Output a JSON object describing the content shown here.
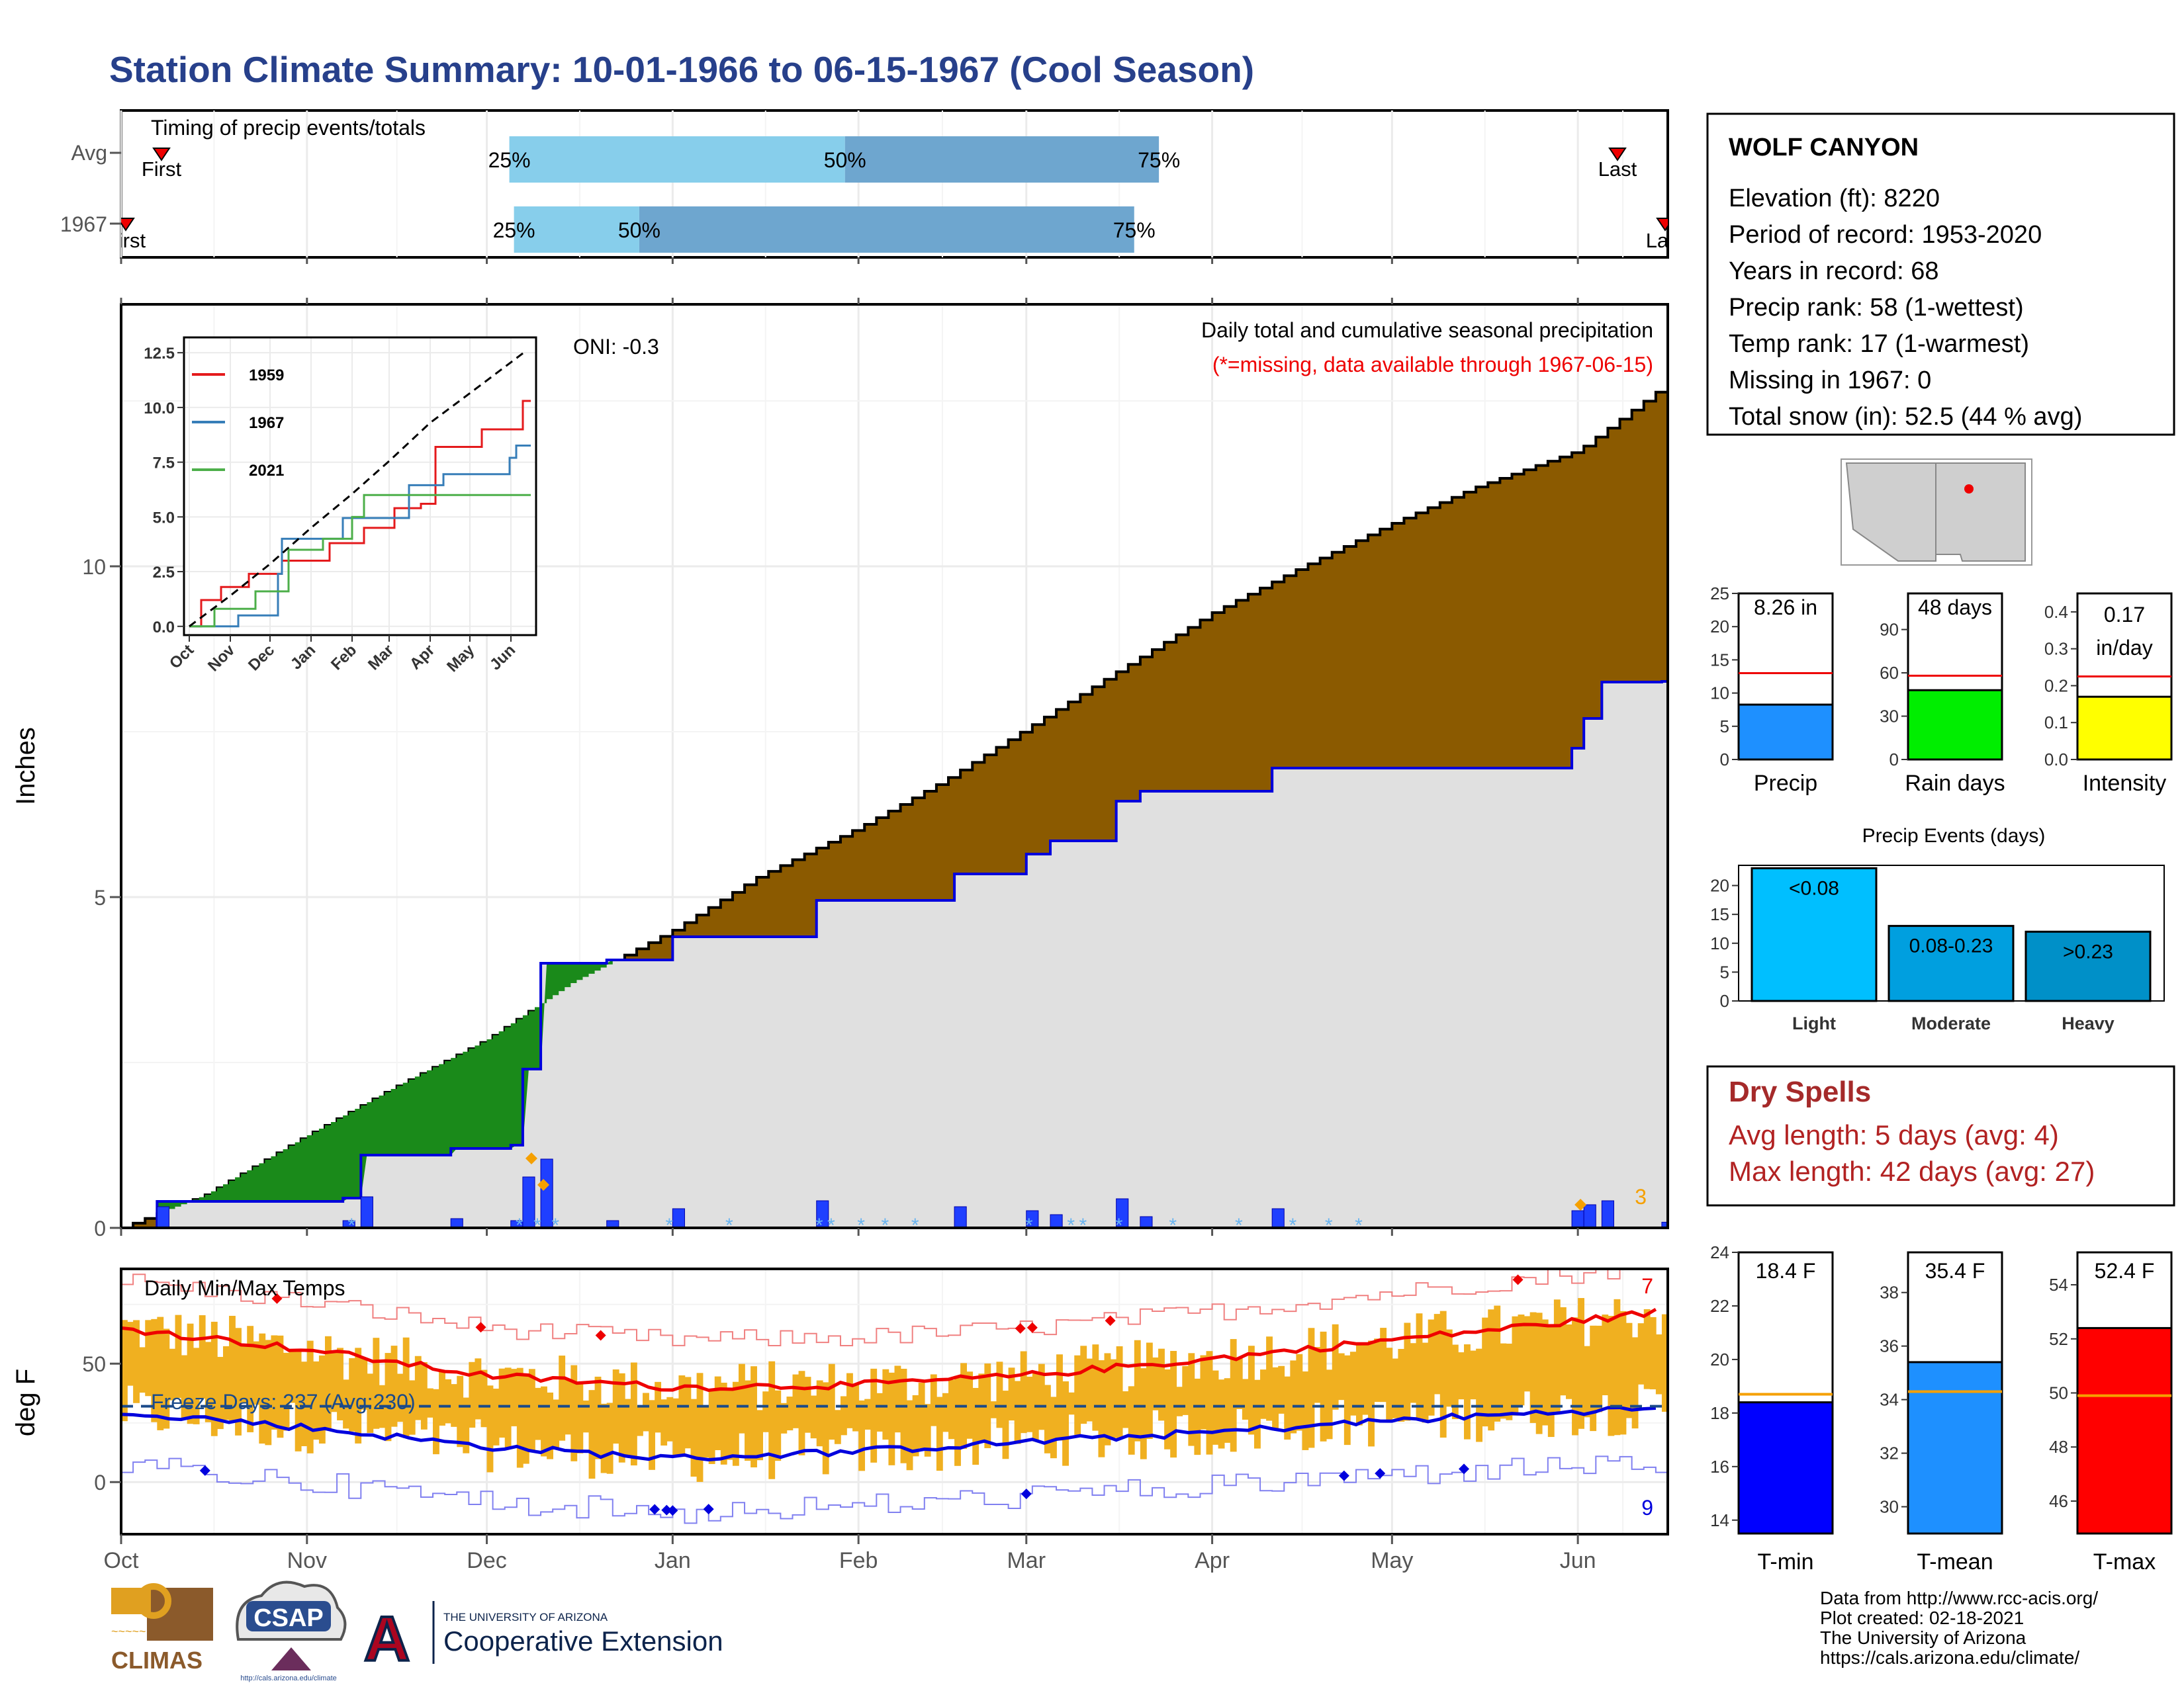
{
  "title": "Station Climate Summary: 10-01-1966 to 06-15-1967 (Cool Season)",
  "timing": {
    "title": "Timing of precip events/totals",
    "rows": [
      {
        "label": "Avg",
        "first_label": "First",
        "last_label": "Last",
        "p25": "25%",
        "p50": "50%",
        "p75": "75%",
        "p25_frac": 0.251,
        "p50_frac": 0.468,
        "p75_frac": 0.671
      },
      {
        "label": "1967",
        "first_label": "First",
        "last_label": "Last",
        "p25": "25%",
        "p50": "50%",
        "p75": "75%",
        "p25_frac": 0.254,
        "p50_frac": 0.335,
        "p75_frac": 0.655
      }
    ]
  },
  "station": {
    "name": "WOLF CANYON",
    "lines": [
      "Elevation (ft): 8220",
      "Period of record: 1953-2020",
      "Years in record: 68",
      "Precip rank: 58 (1-wettest)",
      "Temp rank: 17 (1-warmest)",
      "Missing in 1967: 0",
      "Total snow (in): 52.5 (44 % avg)"
    ]
  },
  "precip_panel": {
    "title": "Daily total and cumulative seasonal precipitation",
    "subtitle": "(*=missing, data available through 1967-06-15)",
    "oni": "ONI: -0.3",
    "ylabel": "Inches",
    "corner_value": "3",
    "colors": {
      "avg_fill": "#8b5a00",
      "year_fill": "#e0e0e0",
      "year_line": "#0000dd",
      "above_fill": "#1a8a1a",
      "bars": "#1f3fff",
      "snow": "#6ab4f0",
      "marker": "#f5a000"
    }
  },
  "temp_panel": {
    "title": "Daily Min/Max Temps",
    "freeze_days": "Freeze Days: 237 (Avg:230)",
    "ylabel": "deg F",
    "max_count": "7",
    "min_count": "9"
  },
  "months": [
    "Oct",
    "Nov",
    "Dec",
    "Jan",
    "Feb",
    "Mar",
    "Apr",
    "May",
    "Jun"
  ],
  "inset": {
    "months": [
      "Oct",
      "Nov",
      "Dec",
      "Jan",
      "Feb",
      "Mar",
      "Apr",
      "May",
      "Jun"
    ],
    "legend": [
      "1959",
      "1967",
      "2021"
    ],
    "colors": [
      "#e41a1c",
      "#377eb8",
      "#4daf4a"
    ]
  },
  "stat_bars": [
    {
      "label": "Precip",
      "value_text": "8.26 in",
      "color": "#1e90ff",
      "value": 8.26,
      "avg": 13.0,
      "ymax": 25,
      "ticks": [
        "0",
        "5",
        "10",
        "15",
        "20",
        "25"
      ]
    },
    {
      "label": "Rain days",
      "value_text": "48 days",
      "color": "#00ee00",
      "value": 48,
      "avg": 58,
      "ymax": 115,
      "ticks": [
        "0",
        "30",
        "60",
        "90"
      ]
    },
    {
      "label": "Intensity",
      "value_text": "0.17 in/day",
      "value_line1": "0.17",
      "value_line2": "in/day",
      "color": "#ffff00",
      "value": 0.17,
      "avg": 0.225,
      "ymax": 0.45,
      "ticks": [
        "0.0",
        "0.1",
        "0.2",
        "0.3",
        "0.4"
      ]
    }
  ],
  "events": {
    "title": "Precip Events (days)",
    "categories": [
      "Light",
      "Moderate",
      "Heavy"
    ],
    "bar_labels": [
      "<0.08",
      "0.08-0.23",
      ">0.23"
    ],
    "values": [
      23,
      13,
      12
    ],
    "ticks": [
      "0",
      "5",
      "10",
      "15",
      "20"
    ],
    "colors": [
      "#00bfff",
      "#009fdf",
      "#0090c8"
    ]
  },
  "dry_spells": {
    "title": "Dry Spells",
    "avg": "Avg length: 5 days (avg: 4)",
    "max": "Max length: 42 days (avg: 27)"
  },
  "temp_bars": [
    {
      "label": "T-min",
      "value_text": "18.4 F",
      "color": "#0000ff",
      "value": 18.4,
      "avg": 18.7,
      "ymin": 13.5,
      "ymax": 24,
      "ticks": [
        "14",
        "16",
        "18",
        "20",
        "22",
        "24"
      ]
    },
    {
      "label": "T-mean",
      "value_text": "35.4 F",
      "color": "#1e90ff",
      "value": 35.4,
      "avg": 34.3,
      "ymin": 29,
      "ymax": 39.5,
      "ticks": [
        "30",
        "32",
        "34",
        "36",
        "38"
      ]
    },
    {
      "label": "T-max",
      "value_text": "52.4 F",
      "color": "#ff0000",
      "value": 52.4,
      "avg": 49.9,
      "ymin": 44.8,
      "ymax": 55.2,
      "ticks": [
        "46",
        "48",
        "50",
        "52",
        "54"
      ]
    }
  ],
  "footer": {
    "lines": [
      "Data from http://www.rcc-acis.org/",
      "Plot created: 02-18-2021",
      "The University of Arizona",
      "https://cals.arizona.edu/climate/"
    ],
    "climas": "CLIMAS",
    "csap": "CSAP",
    "csap_url": "http://cals.arizona.edu/climate",
    "ua_small": "THE UNIVERSITY OF ARIZONA",
    "ua_big": "Cooperative Extension"
  },
  "chart_data": [
    {
      "type": "area",
      "title": "Daily total and cumulative seasonal precipitation",
      "ylabel": "Inches",
      "xlim": [
        "1966-10-01",
        "1967-06-15"
      ],
      "ylim": [
        0,
        12.7
      ],
      "y_ticks": [
        0,
        5,
        10
      ],
      "series": [
        {
          "name": "Average cumulative",
          "x": [
            "1966-10-01",
            "1966-10-15",
            "1966-11-01",
            "1966-11-15",
            "1966-12-01",
            "1966-12-15",
            "1967-01-01",
            "1967-01-15",
            "1967-02-01",
            "1967-02-15",
            "1967-03-01",
            "1967-03-15",
            "1967-04-01",
            "1967-04-15",
            "1967-05-01",
            "1967-05-15",
            "1967-06-01",
            "1967-06-15"
          ],
          "y": [
            0.0,
            0.5,
            1.4,
            2.1,
            2.85,
            3.7,
            4.5,
            5.3,
            6.05,
            6.75,
            7.55,
            8.35,
            9.3,
            9.95,
            10.65,
            11.2,
            11.75,
            12.7
          ]
        },
        {
          "name": "1967 cumulative",
          "x": [
            "1966-10-01",
            "1966-10-07",
            "1966-11-07",
            "1966-11-10",
            "1966-11-25",
            "1966-12-05",
            "1966-12-07",
            "1966-12-10",
            "1966-12-21",
            "1967-01-01",
            "1967-01-22",
            "1967-01-25",
            "1967-02-17",
            "1967-03-01",
            "1967-03-05",
            "1967-03-16",
            "1967-03-20",
            "1967-04-11",
            "1967-05-31",
            "1967-06-02",
            "1967-06-05",
            "1967-06-15"
          ],
          "y": [
            0.0,
            0.4,
            0.45,
            1.1,
            1.2,
            1.25,
            2.4,
            4.0,
            4.05,
            4.4,
            4.4,
            4.95,
            5.35,
            5.65,
            5.85,
            6.45,
            6.6,
            6.95,
            7.25,
            7.7,
            8.25,
            8.26
          ]
        }
      ]
    },
    {
      "type": "line",
      "title": "Daily Min/Max Temps",
      "ylabel": "deg F",
      "xlim": [
        "1966-10-01",
        "1967-06-15"
      ],
      "ylim": [
        -22,
        90
      ],
      "y_ticks": [
        0,
        50
      ],
      "series": [
        {
          "name": "Average max",
          "x": [
            "1966-10-01",
            "1966-11-01",
            "1966-12-01",
            "1967-01-01",
            "1967-02-01",
            "1967-03-01",
            "1967-04-01",
            "1967-05-01",
            "1967-06-01",
            "1967-06-15"
          ],
          "y": [
            65,
            56,
            45,
            40,
            41,
            45,
            52,
            60,
            68,
            72
          ]
        },
        {
          "name": "Average min",
          "x": [
            "1966-10-01",
            "1966-11-01",
            "1966-12-01",
            "1967-01-01",
            "1967-02-01",
            "1967-03-01",
            "1967-04-01",
            "1967-05-01",
            "1967-06-01",
            "1967-06-15"
          ],
          "y": [
            30,
            23,
            15,
            10,
            13,
            17,
            21,
            26,
            30,
            31
          ]
        },
        {
          "name": "Freeze threshold",
          "x": [
            "1966-10-01",
            "1967-06-15"
          ],
          "y": [
            32,
            32
          ]
        }
      ]
    },
    {
      "type": "line",
      "title": "",
      "x_ticks": [
        "Oct",
        "Nov",
        "Dec",
        "Jan",
        "Feb",
        "Mar",
        "Apr",
        "May",
        "Jun"
      ],
      "y_ticks": [
        0.0,
        2.5,
        5.0,
        7.5,
        10.0,
        12.5
      ],
      "series": [
        {
          "name": "1959",
          "x": [
            "1966-10-01",
            "1966-10-10",
            "1966-10-25",
            "1966-11-15",
            "1966-12-10",
            "1967-01-15",
            "1967-02-10",
            "1967-03-05",
            "1967-03-25",
            "1967-04-05",
            "1967-05-10",
            "1967-06-10"
          ],
          "y": [
            0,
            1.2,
            1.8,
            2.4,
            3.0,
            3.8,
            4.5,
            5.4,
            5.6,
            8.2,
            9.0,
            10.3
          ]
        },
        {
          "name": "1967",
          "x": [
            "1966-10-01",
            "1966-11-07",
            "1966-12-07",
            "1966-12-10",
            "1967-01-25",
            "1967-03-16",
            "1967-04-11",
            "1967-05-31",
            "1967-06-05"
          ],
          "y": [
            0,
            0.5,
            2.4,
            4.0,
            4.95,
            6.45,
            6.95,
            7.7,
            8.26
          ]
        },
        {
          "name": "2021",
          "x": [
            "1966-10-01",
            "1966-10-20",
            "1966-11-20",
            "1966-12-15",
            "1967-01-10",
            "1967-02-01",
            "1967-02-10",
            "1967-03-01",
            "1967-06-15"
          ],
          "y": [
            0,
            0.8,
            1.6,
            3.5,
            4.0,
            5.0,
            6.0,
            6.0,
            6.0
          ]
        },
        {
          "name": "Average",
          "x": [
            "1966-10-01",
            "1966-11-01",
            "1966-12-01",
            "1967-01-01",
            "1967-02-01",
            "1967-03-01",
            "1967-04-01",
            "1967-05-01",
            "1967-06-15"
          ],
          "y": [
            0,
            1.4,
            2.85,
            4.5,
            6.05,
            7.55,
            9.3,
            10.65,
            12.7
          ]
        }
      ]
    },
    {
      "type": "bar",
      "title": "Precip Events (days)",
      "categories": [
        "Light",
        "Moderate",
        "Heavy"
      ],
      "values": [
        23,
        13,
        12
      ]
    }
  ]
}
